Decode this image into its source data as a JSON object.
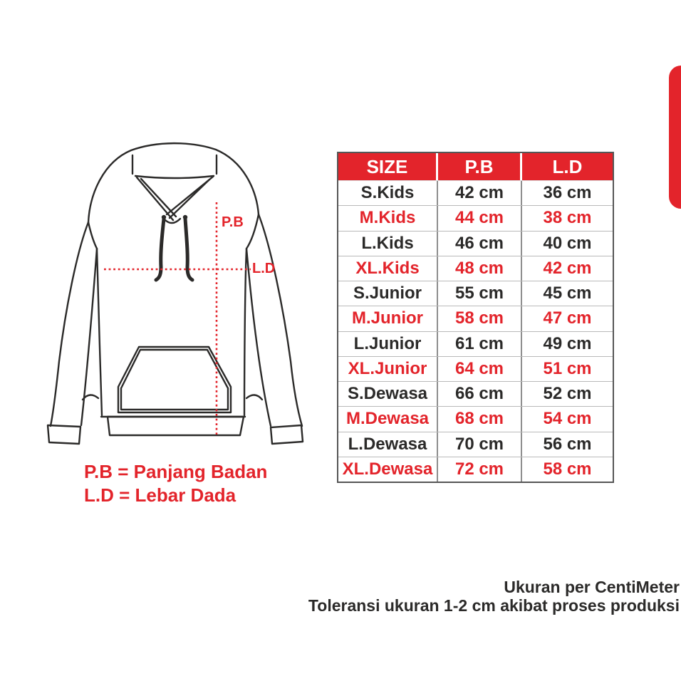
{
  "diagram": {
    "pb_label": "P.B",
    "ld_label": "L.D",
    "legend_line1": "P.B = Panjang Badan",
    "legend_line2": "L.D = Lebar Dada"
  },
  "size_chart": {
    "headers": [
      "SIZE",
      "P.B",
      "L.D"
    ],
    "rows": [
      {
        "size": "S.Kids",
        "pb": "42 cm",
        "ld": "36 cm",
        "highlight": false
      },
      {
        "size": "M.Kids",
        "pb": "44 cm",
        "ld": "38 cm",
        "highlight": true
      },
      {
        "size": "L.Kids",
        "pb": "46 cm",
        "ld": "40 cm",
        "highlight": false
      },
      {
        "size": "XL.Kids",
        "pb": "48 cm",
        "ld": "42 cm",
        "highlight": true
      },
      {
        "size": "S.Junior",
        "pb": "55 cm",
        "ld": "45 cm",
        "highlight": false
      },
      {
        "size": "M.Junior",
        "pb": "58 cm",
        "ld": "47 cm",
        "highlight": true
      },
      {
        "size": "L.Junior",
        "pb": "61 cm",
        "ld": "49 cm",
        "highlight": false
      },
      {
        "size": "XL.Junior",
        "pb": "64 cm",
        "ld": "51 cm",
        "highlight": true
      },
      {
        "size": "S.Dewasa",
        "pb": "66 cm",
        "ld": "52 cm",
        "highlight": false
      },
      {
        "size": "M.Dewasa",
        "pb": "68 cm",
        "ld": "54 cm",
        "highlight": true
      },
      {
        "size": "L.Dewasa",
        "pb": "70 cm",
        "ld": "56 cm",
        "highlight": false
      },
      {
        "size": "XL.Dewasa",
        "pb": "72 cm",
        "ld": "58 cm",
        "highlight": true
      }
    ]
  },
  "footer": {
    "line1": "Ukuran per CentiMeter",
    "line2": "Toleransi ukuran 1-2 cm akibat proses produksi"
  },
  "colors": {
    "red": "#e3242b",
    "dark": "#2b2a29",
    "row_line": "#b9b9b9",
    "column_line": "#8f8f8f",
    "table_border": "#565656",
    "background": "#ffffff"
  }
}
